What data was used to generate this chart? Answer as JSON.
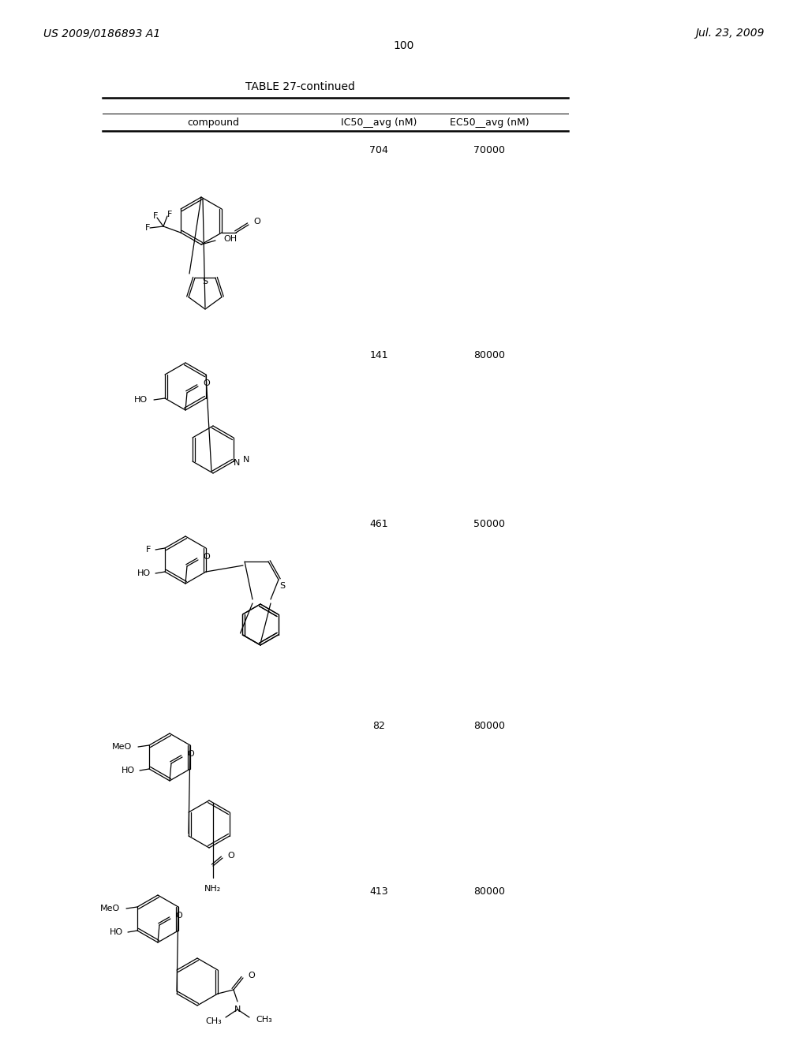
{
  "background_color": "#ffffff",
  "page_width": 10.24,
  "page_height": 13.2,
  "header_left": "US 2009/0186893 A1",
  "header_right": "Jul. 23, 2009",
  "page_number": "100",
  "table_title": "TABLE 27-continued",
  "col_headers": [
    "compound",
    "IC50__avg (nM)",
    "EC50__avg (nM)"
  ],
  "rows": [
    {
      "ic50": "704",
      "ec50": "70000"
    },
    {
      "ic50": "141",
      "ec50": "80000"
    },
    {
      "ic50": "461",
      "ec50": "50000"
    },
    {
      "ic50": "82",
      "ec50": "80000"
    },
    {
      "ic50": "413",
      "ec50": "80000"
    }
  ],
  "font_family": "DejaVu Serif",
  "header_fontsize": 10,
  "body_fontsize": 9,
  "title_fontsize": 10,
  "mol_fontsize": 8
}
